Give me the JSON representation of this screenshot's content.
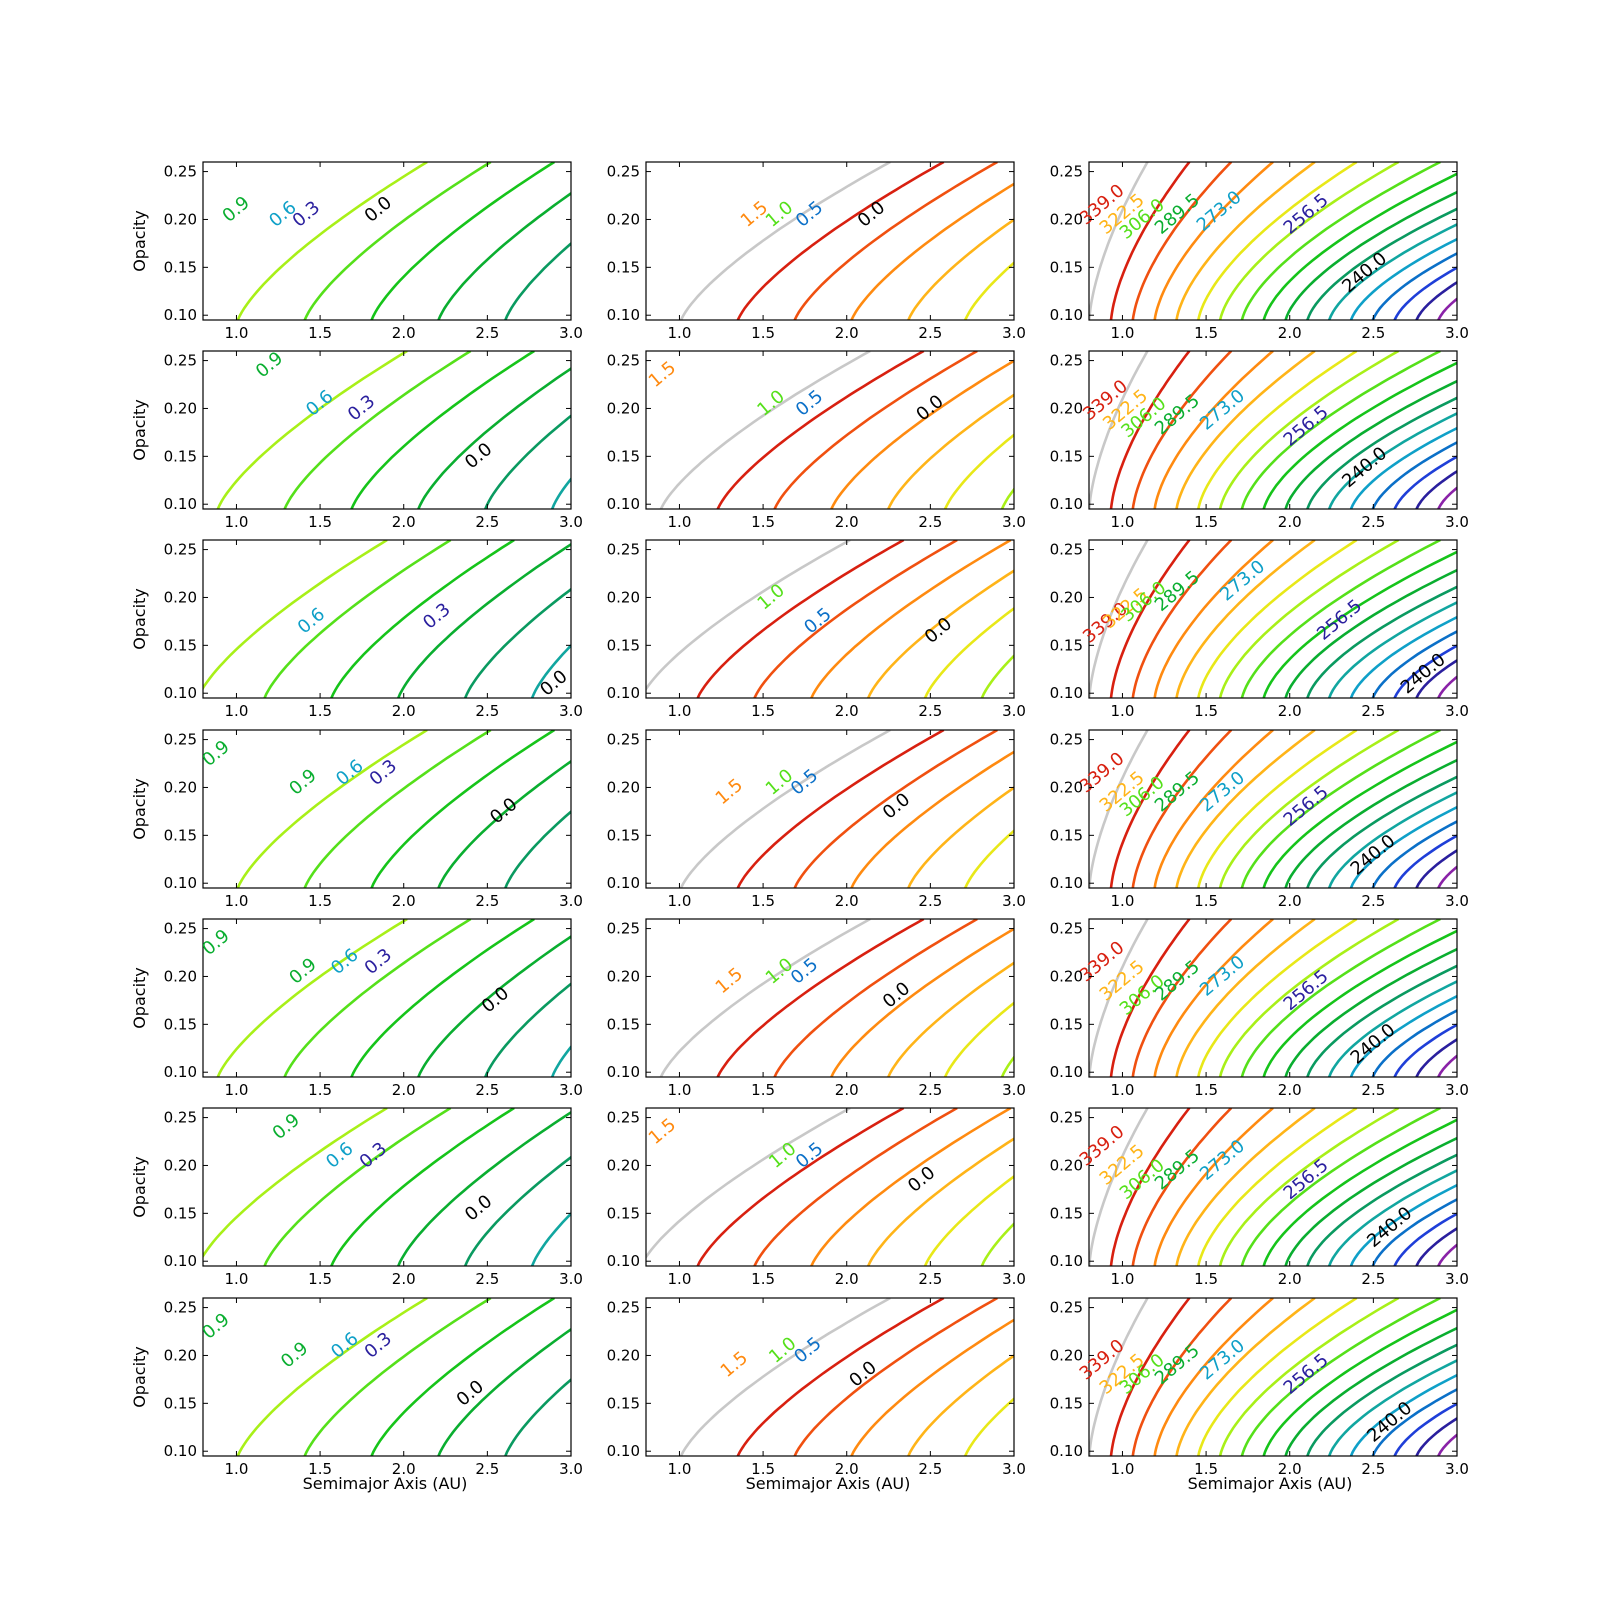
{
  "figure": {
    "xlabel": "Semimajor Axis (AU)",
    "ylabel": "Opacity"
  },
  "chart_data": {
    "type": "contour",
    "grid": "7x3",
    "xlim": [
      0.8,
      3.0
    ],
    "ylim": [
      0.095,
      0.26
    ],
    "x_ticks": [
      "1.0",
      "1.5",
      "2.0",
      "2.5",
      "3.0"
    ],
    "y_ticks": [
      "0.10",
      "0.15",
      "0.20",
      "0.25"
    ],
    "grid_lines": false,
    "columns": [
      {
        "levels": [
          "0.0",
          "0.3",
          "0.6",
          "0.9"
        ],
        "colors": [
          "#000000",
          "#7b2aa0",
          "#8a22a8",
          "#2a1f9e",
          "#1f3fd8",
          "#0b70c8",
          "#0fa0c8",
          "#11a6a0",
          "#0a9a60",
          "#0aae30",
          "#16c41a",
          "#55e01a",
          "#a8f018"
        ],
        "panels": [
          {
            "labels": [
              {
                "text": "0.9",
                "x": 1.0,
                "y": 0.21
              },
              {
                "text": "0.6",
                "x": 1.28,
                "y": 0.205
              },
              {
                "text": "0.3",
                "x": 1.42,
                "y": 0.205
              },
              {
                "text": "0.0",
                "x": 1.85,
                "y": 0.21
              }
            ]
          },
          {
            "labels": [
              {
                "text": "0.9",
                "x": 1.2,
                "y": 0.245
              },
              {
                "text": "0.6",
                "x": 1.5,
                "y": 0.205
              },
              {
                "text": "0.3",
                "x": 1.75,
                "y": 0.2
              },
              {
                "text": "0.0",
                "x": 2.45,
                "y": 0.15
              }
            ]
          },
          {
            "labels": [
              {
                "text": "0.6",
                "x": 1.45,
                "y": 0.175
              },
              {
                "text": "0.3",
                "x": 2.2,
                "y": 0.18
              },
              {
                "text": "0.0",
                "x": 2.9,
                "y": 0.11
              }
            ]
          },
          {
            "labels": [
              {
                "text": "0.9",
                "x": 0.88,
                "y": 0.235
              },
              {
                "text": "0.9",
                "x": 1.4,
                "y": 0.205
              },
              {
                "text": "0.6",
                "x": 1.68,
                "y": 0.215
              },
              {
                "text": "0.3",
                "x": 1.88,
                "y": 0.215
              },
              {
                "text": "0.0",
                "x": 2.6,
                "y": 0.175
              }
            ]
          },
          {
            "labels": [
              {
                "text": "0.9",
                "x": 0.88,
                "y": 0.235
              },
              {
                "text": "0.9",
                "x": 1.4,
                "y": 0.205
              },
              {
                "text": "0.6",
                "x": 1.65,
                "y": 0.215
              },
              {
                "text": "0.3",
                "x": 1.85,
                "y": 0.215
              },
              {
                "text": "0.0",
                "x": 2.55,
                "y": 0.175
              }
            ]
          },
          {
            "labels": [
              {
                "text": "0.9",
                "x": 1.3,
                "y": 0.24
              },
              {
                "text": "0.6",
                "x": 1.62,
                "y": 0.21
              },
              {
                "text": "0.3",
                "x": 1.82,
                "y": 0.21
              },
              {
                "text": "0.0",
                "x": 2.45,
                "y": 0.155
              }
            ]
          },
          {
            "labels": [
              {
                "text": "0.9",
                "x": 0.88,
                "y": 0.23
              },
              {
                "text": "0.9",
                "x": 1.35,
                "y": 0.2
              },
              {
                "text": "0.6",
                "x": 1.65,
                "y": 0.21
              },
              {
                "text": "0.3",
                "x": 1.85,
                "y": 0.21
              },
              {
                "text": "0.0",
                "x": 2.4,
                "y": 0.16
              }
            ]
          }
        ]
      },
      {
        "levels": [
          "0.0",
          "0.5",
          "1.0",
          "1.5"
        ],
        "colors": [
          "#000000",
          "#7b2aa0",
          "#8a22a8",
          "#2a1f9e",
          "#1f3fd8",
          "#0b70c8",
          "#0fa0c8",
          "#11a6a0",
          "#0a9a60",
          "#0aae30",
          "#16c41a",
          "#55e01a",
          "#a8f018",
          "#e8e818",
          "#ffb418",
          "#ff8a10",
          "#f05010",
          "#d82010",
          "#c8c8c8"
        ],
        "panels": [
          {
            "labels": [
              {
                "text": "1.5",
                "x": 1.45,
                "y": 0.205
              },
              {
                "text": "1.0",
                "x": 1.6,
                "y": 0.205
              },
              {
                "text": "0.5",
                "x": 1.78,
                "y": 0.205
              },
              {
                "text": "0.0",
                "x": 2.15,
                "y": 0.205
              }
            ]
          },
          {
            "labels": [
              {
                "text": "1.5",
                "x": 0.9,
                "y": 0.235
              },
              {
                "text": "1.0",
                "x": 1.55,
                "y": 0.205
              },
              {
                "text": "0.5",
                "x": 1.78,
                "y": 0.205
              },
              {
                "text": "0.0",
                "x": 2.5,
                "y": 0.2
              }
            ]
          },
          {
            "labels": [
              {
                "text": "1.0",
                "x": 1.55,
                "y": 0.2
              },
              {
                "text": "0.5",
                "x": 1.83,
                "y": 0.175
              },
              {
                "text": "0.0",
                "x": 2.55,
                "y": 0.165
              }
            ]
          },
          {
            "labels": [
              {
                "text": "1.5",
                "x": 1.3,
                "y": 0.195
              },
              {
                "text": "1.0",
                "x": 1.6,
                "y": 0.205
              },
              {
                "text": "0.5",
                "x": 1.75,
                "y": 0.205
              },
              {
                "text": "0.0",
                "x": 2.3,
                "y": 0.18
              }
            ]
          },
          {
            "labels": [
              {
                "text": "1.5",
                "x": 1.3,
                "y": 0.195
              },
              {
                "text": "1.0",
                "x": 1.6,
                "y": 0.205
              },
              {
                "text": "0.5",
                "x": 1.75,
                "y": 0.205
              },
              {
                "text": "0.0",
                "x": 2.3,
                "y": 0.18
              }
            ]
          },
          {
            "labels": [
              {
                "text": "1.5",
                "x": 0.9,
                "y": 0.235
              },
              {
                "text": "1.0",
                "x": 1.62,
                "y": 0.21
              },
              {
                "text": "0.5",
                "x": 1.78,
                "y": 0.21
              },
              {
                "text": "0.0",
                "x": 2.45,
                "y": 0.185
              }
            ]
          },
          {
            "labels": [
              {
                "text": "1.5",
                "x": 1.33,
                "y": 0.19
              },
              {
                "text": "1.0",
                "x": 1.62,
                "y": 0.205
              },
              {
                "text": "0.5",
                "x": 1.77,
                "y": 0.205
              },
              {
                "text": "0.0",
                "x": 2.1,
                "y": 0.18
              }
            ]
          }
        ]
      },
      {
        "levels": [
          "240.0",
          "256.5",
          "273.0",
          "289.5",
          "306.0",
          "322.5",
          "339.0"
        ],
        "colors": [
          "#000000",
          "#7b2aa0",
          "#8a22a8",
          "#2a1f9e",
          "#1f3fd8",
          "#0b70c8",
          "#0fa0c8",
          "#11a6a0",
          "#0a9a60",
          "#0aae30",
          "#16c41a",
          "#55e01a",
          "#a8f018",
          "#e8e818",
          "#ffb418",
          "#ff8a10",
          "#f05010",
          "#d82010",
          "#c8c8c8"
        ],
        "panels": [
          {
            "labels": [
              {
                "text": "339.0",
                "x": 0.88,
                "y": 0.215
              },
              {
                "text": "322.5",
                "x": 1.0,
                "y": 0.205
              },
              {
                "text": "306.0",
                "x": 1.12,
                "y": 0.2
              },
              {
                "text": "289.5",
                "x": 1.33,
                "y": 0.205
              },
              {
                "text": "273.0",
                "x": 1.58,
                "y": 0.208
              },
              {
                "text": "256.5",
                "x": 2.1,
                "y": 0.205
              },
              {
                "text": "240.0",
                "x": 2.45,
                "y": 0.144
              }
            ]
          },
          {
            "labels": [
              {
                "text": "339.0",
                "x": 0.9,
                "y": 0.208
              },
              {
                "text": "322.5",
                "x": 1.02,
                "y": 0.198
              },
              {
                "text": "306.0",
                "x": 1.13,
                "y": 0.19
              },
              {
                "text": "289.5",
                "x": 1.33,
                "y": 0.193
              },
              {
                "text": "273.0",
                "x": 1.6,
                "y": 0.198
              },
              {
                "text": "256.5",
                "x": 2.1,
                "y": 0.181
              },
              {
                "text": "240.0",
                "x": 2.45,
                "y": 0.138
              }
            ]
          },
          {
            "labels": [
              {
                "text": "339.0",
                "x": 0.9,
                "y": 0.173
              },
              {
                "text": "322.5",
                "x": 1.02,
                "y": 0.188
              },
              {
                "text": "306.0",
                "x": 1.13,
                "y": 0.195
              },
              {
                "text": "289.5",
                "x": 1.33,
                "y": 0.206
              },
              {
                "text": "273.0",
                "x": 1.72,
                "y": 0.217
              },
              {
                "text": "256.5",
                "x": 2.3,
                "y": 0.176
              },
              {
                "text": "240.0",
                "x": 2.8,
                "y": 0.12
              }
            ]
          },
          {
            "labels": [
              {
                "text": "339.0",
                "x": 0.88,
                "y": 0.215
              },
              {
                "text": "322.5",
                "x": 1.0,
                "y": 0.195
              },
              {
                "text": "306.0",
                "x": 1.12,
                "y": 0.19
              },
              {
                "text": "289.5",
                "x": 1.33,
                "y": 0.195
              },
              {
                "text": "273.0",
                "x": 1.6,
                "y": 0.195
              },
              {
                "text": "256.5",
                "x": 2.1,
                "y": 0.18
              },
              {
                "text": "240.0",
                "x": 2.5,
                "y": 0.129
              }
            ]
          },
          {
            "labels": [
              {
                "text": "339.0",
                "x": 0.88,
                "y": 0.215
              },
              {
                "text": "322.5",
                "x": 1.0,
                "y": 0.195
              },
              {
                "text": "306.0",
                "x": 1.12,
                "y": 0.18
              },
              {
                "text": "289.5",
                "x": 1.33,
                "y": 0.195
              },
              {
                "text": "273.0",
                "x": 1.6,
                "y": 0.2
              },
              {
                "text": "256.5",
                "x": 2.1,
                "y": 0.185
              },
              {
                "text": "240.0",
                "x": 2.5,
                "y": 0.129
              }
            ]
          },
          {
            "labels": [
              {
                "text": "339.0",
                "x": 0.88,
                "y": 0.22
              },
              {
                "text": "322.5",
                "x": 1.0,
                "y": 0.2
              },
              {
                "text": "306.0",
                "x": 1.12,
                "y": 0.185
              },
              {
                "text": "289.5",
                "x": 1.33,
                "y": 0.195
              },
              {
                "text": "273.0",
                "x": 1.6,
                "y": 0.205
              },
              {
                "text": "256.5",
                "x": 2.1,
                "y": 0.185
              },
              {
                "text": "240.0",
                "x": 2.6,
                "y": 0.135
              }
            ]
          },
          {
            "labels": [
              {
                "text": "339.0",
                "x": 0.88,
                "y": 0.195
              },
              {
                "text": "322.5",
                "x": 1.0,
                "y": 0.18
              },
              {
                "text": "306.0",
                "x": 1.12,
                "y": 0.18
              },
              {
                "text": "289.5",
                "x": 1.33,
                "y": 0.19
              },
              {
                "text": "273.0",
                "x": 1.6,
                "y": 0.195
              },
              {
                "text": "256.5",
                "x": 2.1,
                "y": 0.18
              },
              {
                "text": "240.0",
                "x": 2.6,
                "y": 0.13
              }
            ]
          }
        ]
      }
    ]
  }
}
